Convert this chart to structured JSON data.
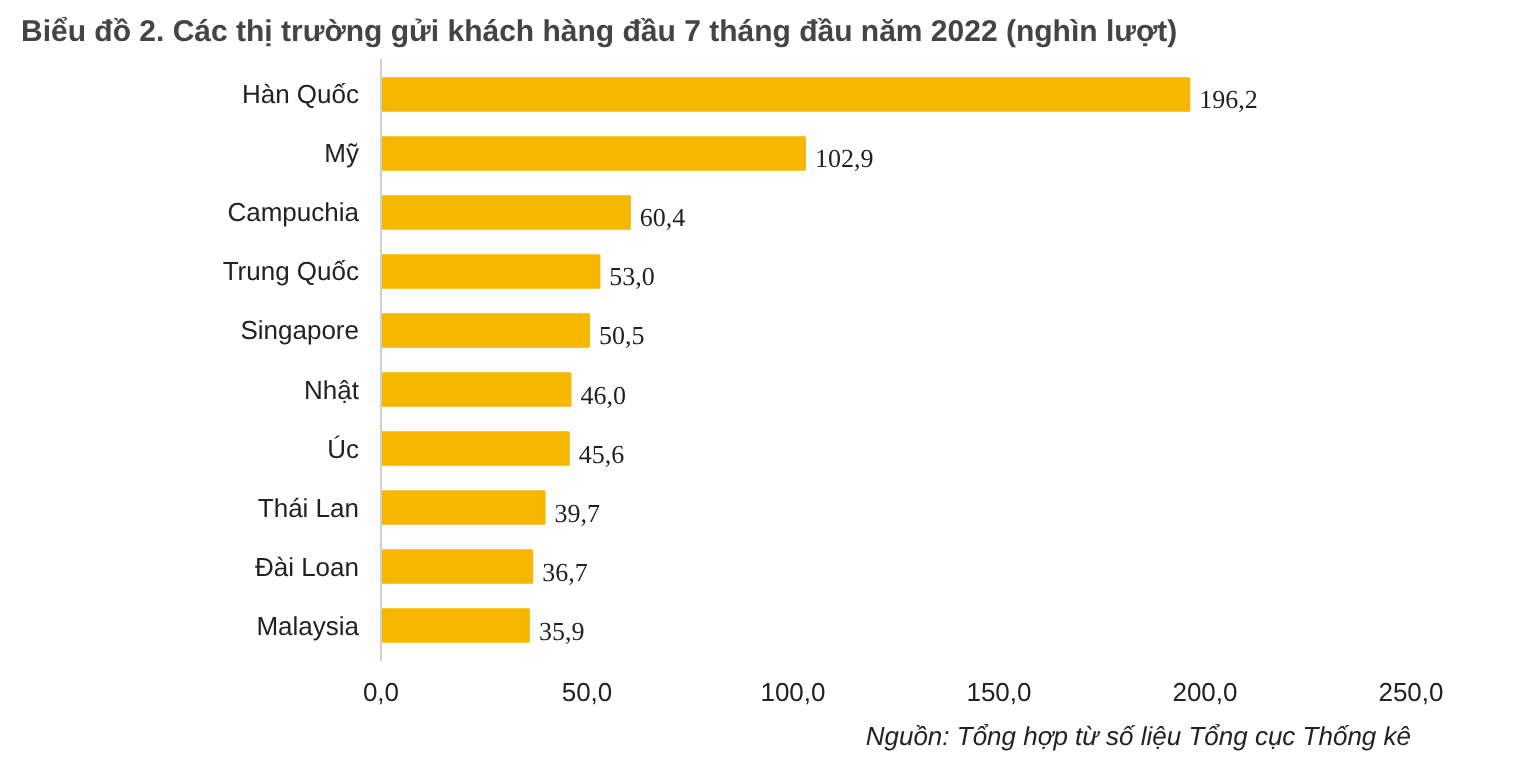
{
  "chart_data": {
    "type": "bar",
    "orientation": "horizontal",
    "title": "Biểu đồ 2. Các thị trường gửi khách hàng đầu 7 tháng đầu năm 2022 (nghìn lượt)",
    "categories": [
      "Hàn Quốc",
      "Mỹ",
      "Campuchia",
      "Trung Quốc",
      "Singapore",
      "Nhật",
      "Úc",
      "Thái Lan",
      "Đài Loan",
      "Malaysia"
    ],
    "values": [
      196.2,
      102.9,
      60.4,
      53.0,
      50.5,
      46.0,
      45.6,
      39.7,
      36.7,
      35.9
    ],
    "value_labels": [
      "196,2",
      "102,9",
      "60,4",
      "53,0",
      "50,5",
      "46,0",
      "45,6",
      "39,7",
      "36,7",
      "35,9"
    ],
    "color": "#f5b700",
    "xlim": [
      0,
      250
    ],
    "xticks": [
      {
        "value": 0,
        "label": "0,0"
      },
      {
        "value": 50,
        "label": "50,0"
      },
      {
        "value": 100,
        "label": "100,0"
      },
      {
        "value": 150,
        "label": "150,0"
      },
      {
        "value": 200,
        "label": "200,0"
      },
      {
        "value": 250,
        "label": "250,0"
      }
    ],
    "grid": false,
    "annotations": [
      "Nguồn: Tổng hợp từ số liệu Tổng cục Thống kê"
    ]
  }
}
